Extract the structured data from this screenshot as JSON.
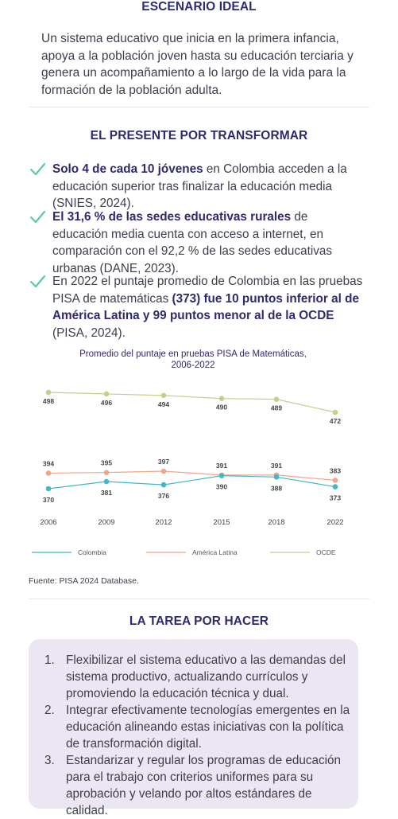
{
  "escenario": {
    "title": "ESCENARIO IDEAL",
    "text": "Un sistema educativo que inicia en la primera infancia, apoya a la población joven hasta su educación terciaria y genera un acompañamiento a lo largo de la vida para la formación de la población adulta."
  },
  "presente": {
    "title": "EL PRESENTE POR TRANSFORMAR",
    "check_icon": "check-icon",
    "check_color": "#5bc8a8",
    "bullets": [
      {
        "bold": "Solo 4 de cada 10 jóvenes",
        "rest": " en Colombia acceden a la educación superior tras finalizar la educación media (SNIES, 2024)."
      },
      {
        "bold": "El 31,6 % de las sedes educativas rurales",
        "rest": " de educación media cuenta con acceso a internet, en comparación con el 92,2 % de las sedes educativas urbanas (DANE, 2023)."
      },
      {
        "pre": "En 2022 el puntaje promedio de Colombia en las pruebas PISA de matemáticas ",
        "bold": "(373) fue 10 puntos inferior al de América Latina y 99 puntos menor al de la OCDE",
        "rest": " (PISA, 2024)."
      }
    ]
  },
  "chart_data": {
    "type": "line",
    "title": "Promedio del puntaje en pruebas PISA de Matemáticas, 2006-2022",
    "categories": [
      "2006",
      "2009",
      "2012",
      "2015",
      "2018",
      "2022"
    ],
    "series": [
      {
        "name": "OCDE",
        "values": [
          498,
          496,
          494,
          490,
          489,
          472
        ],
        "color": "#bfd18a"
      },
      {
        "name": "América Latina",
        "values": [
          394,
          395,
          397,
          391,
          391,
          383
        ],
        "color": "#f0a688"
      },
      {
        "name": "Colombia",
        "values": [
          370,
          381,
          376,
          390,
          388,
          373
        ],
        "color": "#3fb8c8"
      }
    ],
    "legend": "bottom",
    "grid": false
  },
  "source": "Fuente: PISA 2024 Database.",
  "tarea": {
    "title": "LA TAREA POR HACER",
    "items": [
      {
        "num": "1.",
        "text": "Flexibilizar el sistema educativo a las demandas del sistema productivo, actualizando currículos y promoviendo la educación técnica y dual."
      },
      {
        "num": "2.",
        "text": "Integrar efectivamente tecnologías emergentes en la educación alineando estas iniciativas con la política de transformación digital."
      },
      {
        "num": "3.",
        "text": "Estandarizar y regular los programas de educación para el trabajo con criterios uniformes para su aprobación y velando por altos estándares de calidad."
      }
    ]
  }
}
